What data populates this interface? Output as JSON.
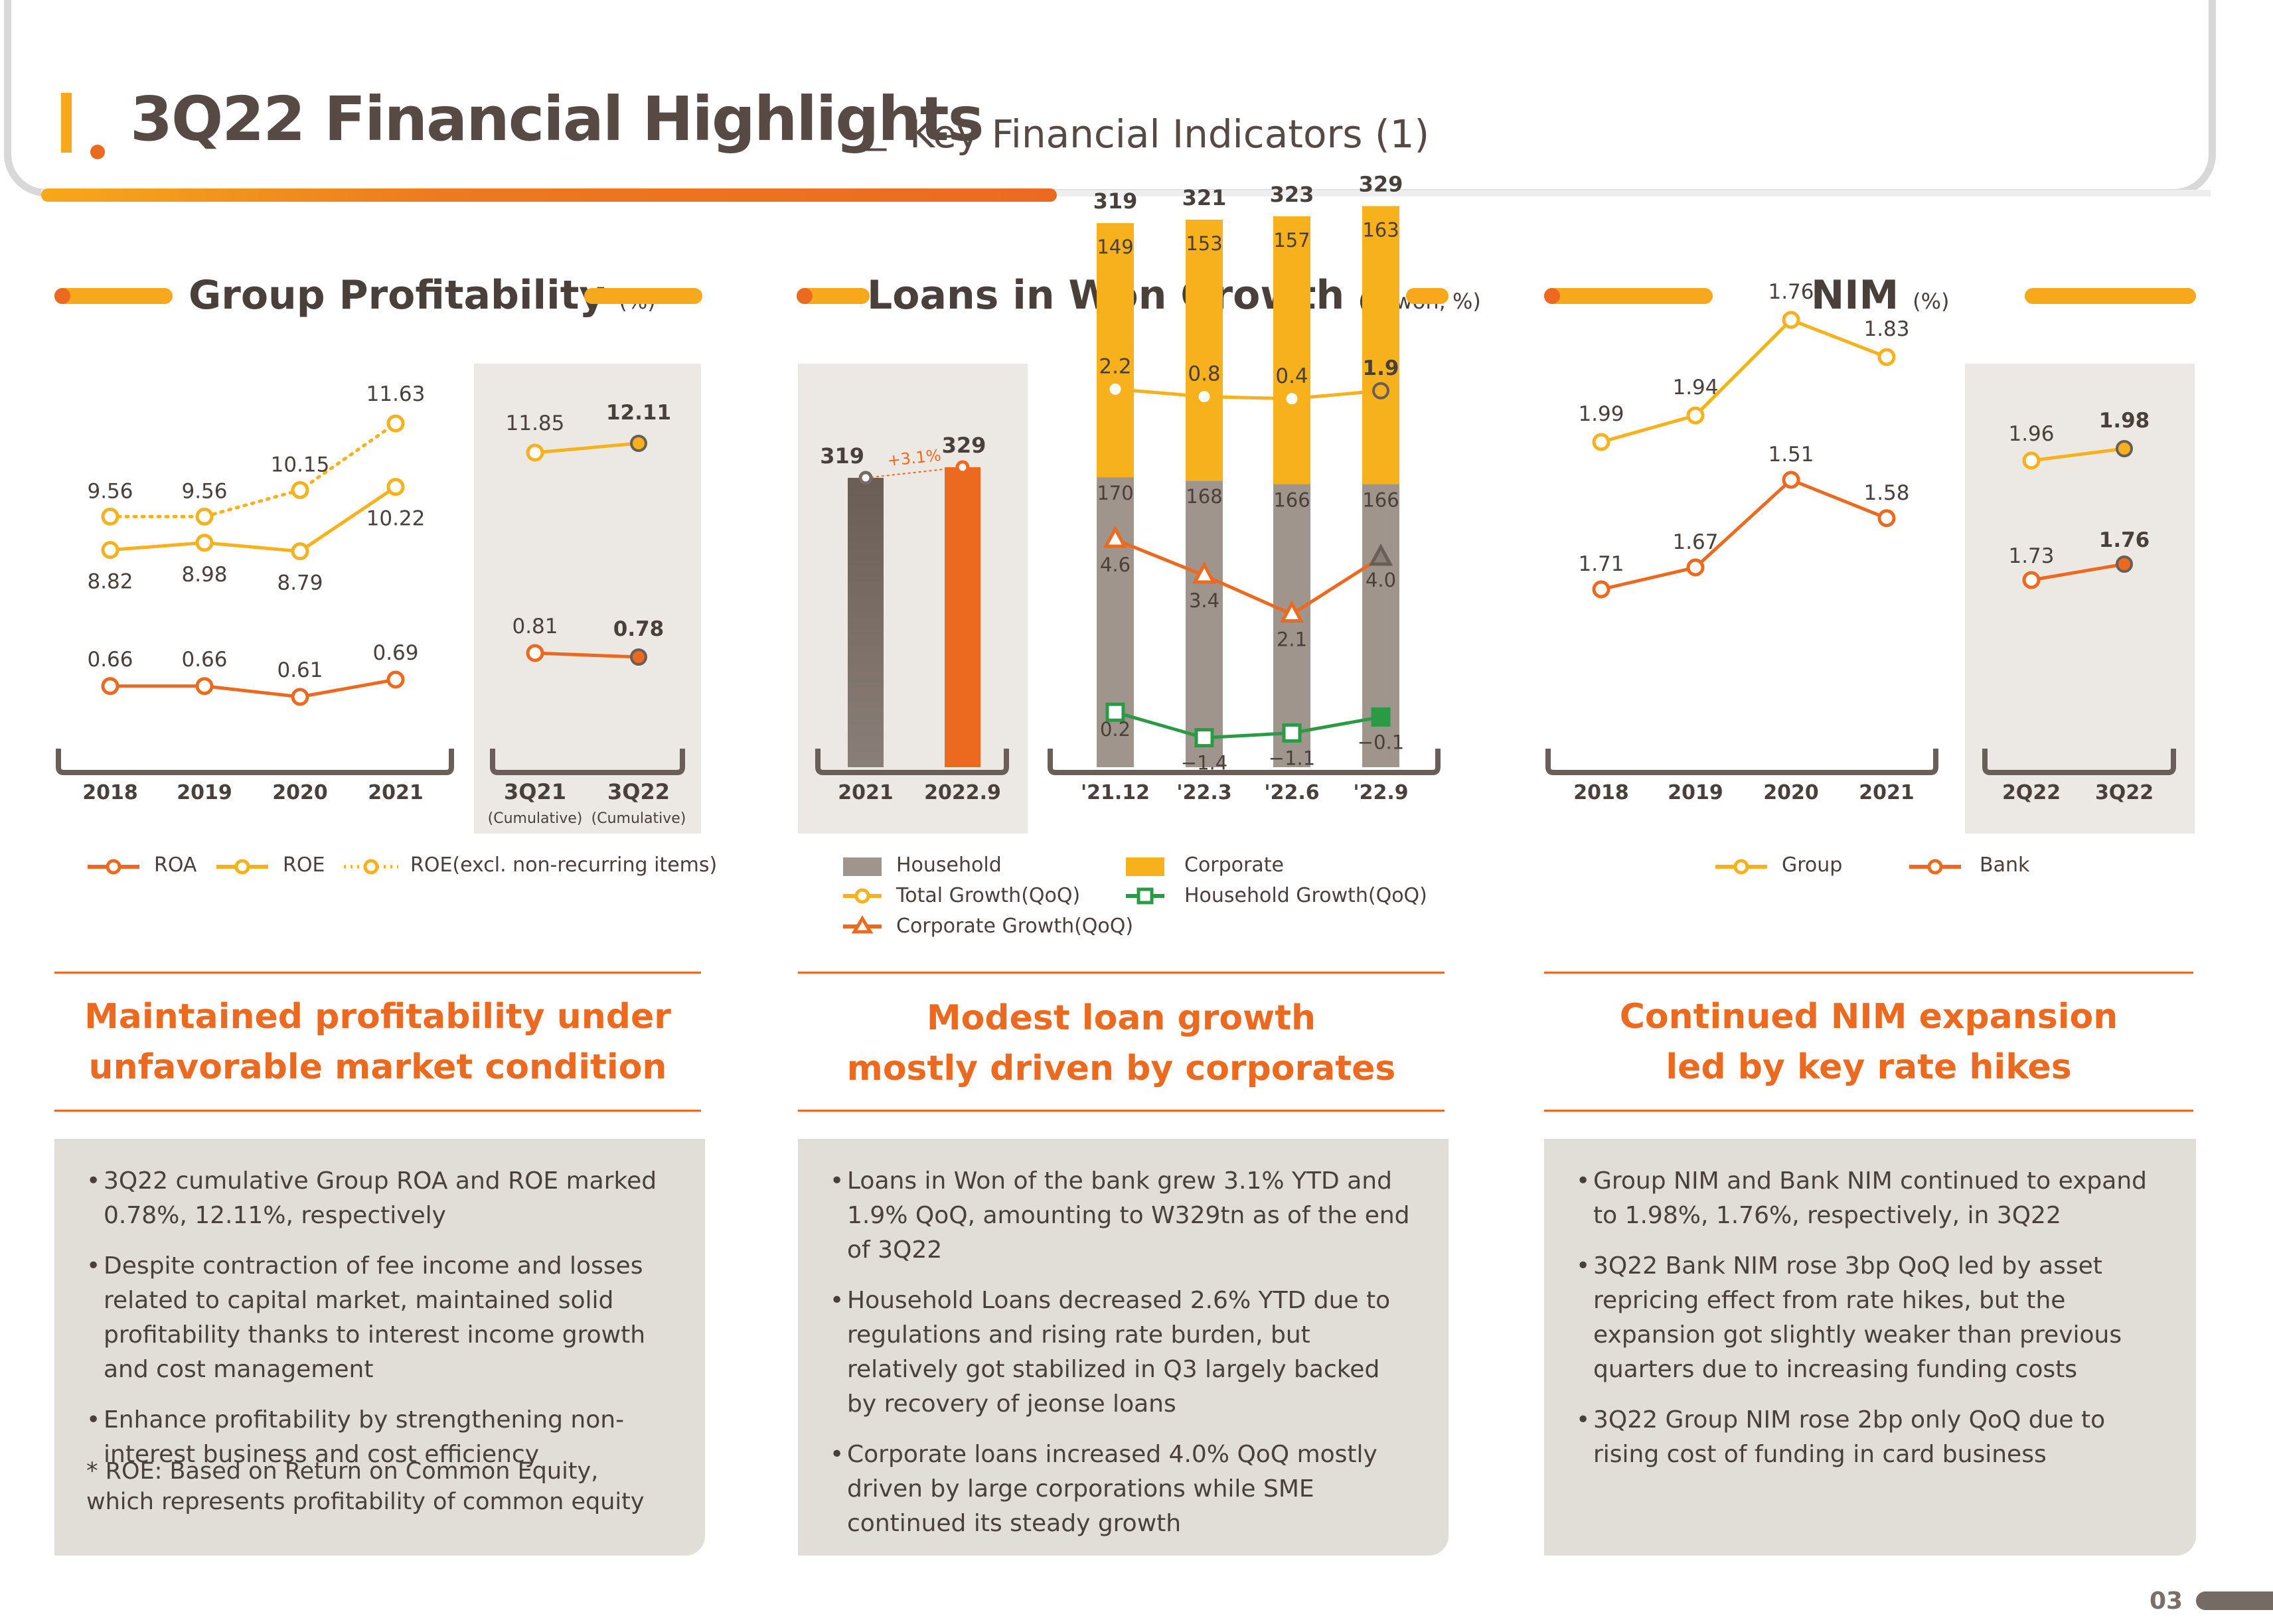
{
  "header": {
    "title": "3Q22 Financial Highlights",
    "separator": "_",
    "subtitle": "Key Financial Indicators (1)"
  },
  "page_number": "03",
  "colors": {
    "orange": "#ec6a20",
    "yellow": "#f7b11c",
    "gray": "#a0958d",
    "dark": "#766b64",
    "green": "#2a9a44",
    "panel": "#ece9e4"
  },
  "sections": {
    "profitability": {
      "title": "Group Profitability",
      "unit": "(%)",
      "headline": [
        "Maintained profitability under",
        "unfavorable market condition"
      ],
      "bullets": [
        "3Q22 cumulative Group ROA and ROE marked 0.78%, 12.11%, respectively",
        "Despite contraction of fee income and losses related to capital market, maintained solid profitability thanks to interest income growth and cost management",
        "Enhance profitability by strengthening non-interest business and cost efficiency"
      ],
      "note": "* ROE: Based on Return on Common Equity, which represents profitability of common equity",
      "legend": [
        "ROA",
        "ROE",
        "ROE(excl. non-recurring items)"
      ],
      "sub_labels": [
        "(Cumulative)",
        "(Cumulative)"
      ]
    },
    "loans": {
      "title": "Loans in Won Growth",
      "unit": "(tn won, %)",
      "headline": [
        "Modest loan growth",
        "mostly driven by corporates"
      ],
      "bullets": [
        "Loans in Won of the bank grew 3.1% YTD and 1.9% QoQ, amounting to W329tn as of the end of 3Q22",
        "Household  Loans decreased 2.6% YTD due to regulations and rising rate burden, but relatively got stabilized in Q3 largely backed by recovery of jeonse loans",
        "Corporate loans increased 4.0% QoQ mostly driven by large corporations while SME continued its steady growth"
      ],
      "legend": [
        "Household",
        "Corporate",
        "Total Growth(QoQ)",
        "Household Growth(QoQ)",
        "Corporate Growth(QoQ)"
      ]
    },
    "nim": {
      "title": "NIM",
      "unit": "(%)",
      "headline": [
        "Continued NIM expansion",
        "led by key rate hikes"
      ],
      "bullets": [
        "Group NIM and Bank NIM continued to expand to 1.98%, 1.76%, respectively, in 3Q22",
        "3Q22 Bank NIM rose 3bp QoQ led by asset repricing effect from rate hikes, but the expansion got slightly weaker than previous quarters due to increasing funding costs",
        "3Q22 Group NIM rose 2bp only QoQ due to rising cost of funding in card business"
      ],
      "legend": [
        "Group",
        "Bank"
      ]
    }
  },
  "chart_data": [
    {
      "id": "profitability-annual",
      "type": "line",
      "categories": [
        "2018",
        "2019",
        "2020",
        "2021"
      ],
      "series": [
        {
          "name": "ROA",
          "values": [
            0.66,
            0.66,
            0.61,
            0.69
          ],
          "labels": [
            "0.66",
            "0.66",
            "0.61",
            "0.69"
          ]
        },
        {
          "name": "ROE",
          "values": [
            8.82,
            8.98,
            8.79,
            10.22
          ],
          "labels": [
            "8.82",
            "8.98",
            "8.79",
            "10.22"
          ]
        },
        {
          "name": "ROE(excl. non-recurring items)",
          "values": [
            9.56,
            9.56,
            10.15,
            11.63
          ],
          "labels": [
            "9.56",
            "9.56",
            "10.15",
            "11.63"
          ]
        }
      ]
    },
    {
      "id": "profitability-quarterly",
      "type": "line",
      "categories": [
        "3Q21",
        "3Q22"
      ],
      "series": [
        {
          "name": "ROA",
          "values": [
            0.81,
            0.78
          ],
          "labels": [
            "0.81",
            "0.78"
          ]
        },
        {
          "name": "ROE",
          "values": [
            11.85,
            12.11
          ],
          "labels": [
            "11.85",
            "12.11"
          ]
        }
      ]
    },
    {
      "id": "loans-annual",
      "type": "bar",
      "categories": [
        "2021",
        "2022.9"
      ],
      "values": [
        319,
        329
      ],
      "labels": [
        "319",
        "329"
      ],
      "growth_label": "+3.1%"
    },
    {
      "id": "loans-quarterly",
      "type": "bar",
      "categories": [
        "'21.12",
        "'22.3",
        "'22.6",
        "'22.9"
      ],
      "totals": [
        319,
        321,
        323,
        329
      ],
      "total_labels": [
        "319",
        "321",
        "323",
        "329"
      ],
      "series": [
        {
          "name": "Household",
          "values": [
            170,
            168,
            166,
            166
          ],
          "labels": [
            "170",
            "168",
            "166",
            "166"
          ]
        },
        {
          "name": "Corporate",
          "values": [
            149,
            153,
            157,
            163
          ],
          "labels": [
            "149",
            "153",
            "157",
            "163"
          ]
        },
        {
          "name": "Total Growth(QoQ)",
          "values": [
            2.2,
            0.8,
            0.4,
            1.9
          ],
          "labels": [
            "2.2",
            "0.8",
            "0.4",
            "1.9"
          ]
        },
        {
          "name": "Corporate Growth(QoQ)",
          "values": [
            4.6,
            3.4,
            2.1,
            4.0
          ],
          "labels": [
            "4.6",
            "3.4",
            "2.1",
            "4.0"
          ]
        },
        {
          "name": "Household Growth(QoQ)",
          "values": [
            0.2,
            -1.4,
            -1.1,
            -0.1
          ],
          "labels": [
            "0.2",
            "−1.4",
            "−1.1",
            "−0.1"
          ]
        }
      ]
    },
    {
      "id": "nim-annual",
      "type": "line",
      "categories": [
        "2018",
        "2019",
        "2020",
        "2021"
      ],
      "series": [
        {
          "name": "Group",
          "values": [
            1.99,
            1.94,
            1.76,
            1.83
          ],
          "labels": [
            "1.99",
            "1.94",
            "1.76",
            "1.83"
          ]
        },
        {
          "name": "Bank",
          "values": [
            1.71,
            1.67,
            1.51,
            1.58
          ],
          "labels": [
            "1.71",
            "1.67",
            "1.51",
            "1.58"
          ]
        }
      ]
    },
    {
      "id": "nim-quarterly",
      "type": "line",
      "categories": [
        "2Q22",
        "3Q22"
      ],
      "series": [
        {
          "name": "Group",
          "values": [
            1.96,
            1.98
          ],
          "labels": [
            "1.96",
            "1.98"
          ]
        },
        {
          "name": "Bank",
          "values": [
            1.73,
            1.76
          ],
          "labels": [
            "1.73",
            "1.76"
          ]
        }
      ]
    }
  ]
}
